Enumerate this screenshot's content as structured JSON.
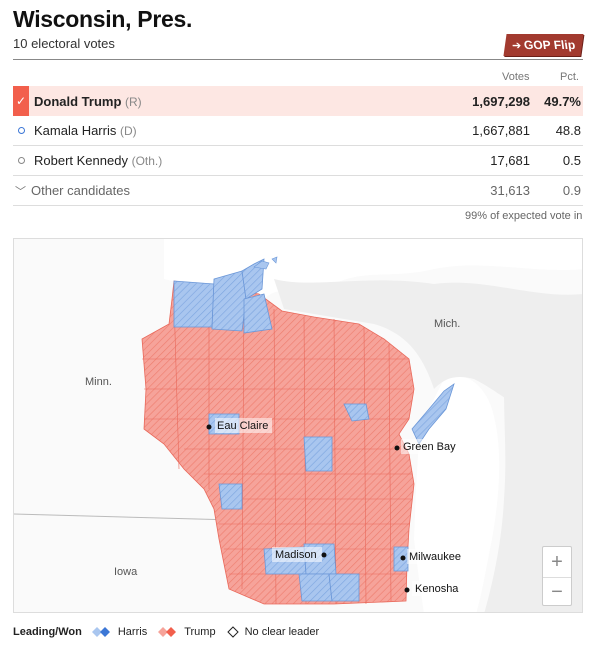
{
  "header": {
    "title": "Wisconsin, Pres.",
    "subtitle": "10 electoral votes",
    "flip_label": "GOP Flip",
    "flip_color": "#a23a2f"
  },
  "columns": {
    "votes": "Votes",
    "pct": "Pct."
  },
  "candidates": [
    {
      "name": "Donald Trump",
      "party": "(R)",
      "votes": "1,697,298",
      "pct": "49.7%",
      "winner": true,
      "color": "#f25f4c"
    },
    {
      "name": "Kamala Harris",
      "party": "(D)",
      "votes": "1,667,881",
      "pct": "48.8",
      "color": "#3c77d6"
    },
    {
      "name": "Robert Kennedy",
      "party": "(Oth.)",
      "votes": "17,681",
      "pct": "0.5"
    },
    {
      "name": "Other candidates",
      "party": "",
      "votes": "31,613",
      "pct": "0.9"
    }
  ],
  "expected_vote": "99% of expected vote in",
  "map": {
    "labels": {
      "minn": "Minn.",
      "mich": "Mich.",
      "iowa": "Iowa"
    },
    "cities": [
      "Eau Claire",
      "Green Bay",
      "Madison",
      "Milwaukee",
      "Kenosha"
    ],
    "zoom_in": "+",
    "zoom_out": "−",
    "colors": {
      "trump": "#f6a39a",
      "harris": "#a9c6ef",
      "water": "#ffffff",
      "land": "#ececec"
    }
  },
  "legend": {
    "title": "Leading/Won",
    "harris": "Harris",
    "trump": "Trump",
    "none": "No clear leader"
  }
}
